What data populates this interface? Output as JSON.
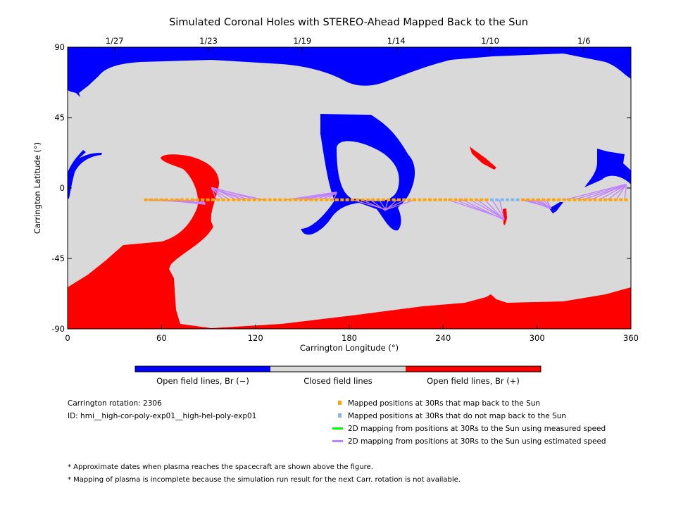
{
  "chart_data": {
    "type": "map",
    "title": "Simulated Coronal Holes with STEREO-Ahead Mapped Back to the Sun",
    "xlabel": "Carrington Longitude (°)",
    "ylabel": "Carrington Latitude (°)",
    "xlim": [
      0,
      360
    ],
    "ylim": [
      -90,
      90
    ],
    "x_ticks": [
      "0",
      "60",
      "120",
      "180",
      "240",
      "300",
      "360"
    ],
    "y_ticks": [
      "90",
      "45",
      "0",
      "-45",
      "-90"
    ],
    "top_date_ticks": [
      {
        "label": "1/27",
        "lon": 30
      },
      {
        "label": "1/23",
        "lon": 90
      },
      {
        "label": "1/19",
        "lon": 150
      },
      {
        "label": "1/14",
        "lon": 210
      },
      {
        "label": "1/10",
        "lon": 270
      },
      {
        "label": "1/6",
        "lon": 330
      }
    ],
    "colors": {
      "open_negative": "#0000ff",
      "closed": "#d9d9d9",
      "open_positive": "#ff0000",
      "mapped": "#ffa500",
      "not_mapped": "#80b8f0",
      "measured_speed": "#00ff00",
      "estimated_speed": "#c080ff"
    },
    "colorbar_labels": [
      "Open field lines, Br (−)",
      "Closed field lines",
      "Open field lines, Br (+)"
    ],
    "points_latitude": -7.5,
    "mapped_back_lons": [
      50,
      53.3,
      56.6,
      59.9,
      63.2,
      66.5,
      69.8,
      73.1,
      76.4,
      79.7,
      83,
      86.3,
      89.6,
      92.9,
      96.2,
      99.5,
      102.8,
      106.1,
      109.4,
      112.7,
      116,
      119.3,
      122.6,
      125.9,
      129.2,
      132.5,
      135.8,
      139.1,
      142.4,
      145.7,
      149,
      152.3,
      155.6,
      158.9,
      162.2,
      165.5,
      168.8,
      172.1,
      175.4,
      178.7,
      182,
      185.3,
      188.6,
      191.9,
      195.2,
      198.5,
      201.8,
      205.1,
      208.4,
      211.7,
      215,
      218.3,
      221.6,
      224.9,
      228.2,
      231.5,
      234.8,
      238.1,
      241.4,
      244.7,
      248,
      251.3,
      254.6,
      257.9,
      261.2,
      264.5,
      267.8,
      290.9,
      294.2,
      297.5,
      300.8,
      304.1,
      307.4,
      310.7,
      314,
      317.3,
      320.6,
      323.9,
      327.2,
      330.5,
      333.8,
      337.1,
      340.4,
      343.7,
      347,
      350.3,
      353.6,
      356.9
    ],
    "not_mapped_lons": [
      271.1,
      274.4,
      277.7,
      281,
      284.3,
      287.6
    ],
    "estimated_speed_fans": [
      {
        "foot": [
          88,
          -10
        ],
        "from": [
          50,
          86
        ]
      },
      {
        "foot": [
          92,
          0
        ],
        "from": [
          95,
          125
        ]
      },
      {
        "foot": [
          172,
          -3
        ],
        "from": [
          140,
          170
        ]
      },
      {
        "foot": [
          203,
          -14
        ],
        "from": [
          182,
          222
        ]
      },
      {
        "foot": [
          279,
          -20
        ],
        "from": [
          243,
          276
        ]
      },
      {
        "foot": [
          309,
          -13
        ],
        "from": [
          290,
          306
        ]
      },
      {
        "foot": [
          357,
          2
        ],
        "from": [
          318,
          356
        ]
      }
    ]
  },
  "info": {
    "rotation": "Carrington rotation: 2306",
    "id": "ID: hmi__high-cor-poly-exp01__high-hel-poly-exp01"
  },
  "legend": [
    "Mapped positions at 30Rs that map back to the Sun",
    "Mapped positions at 30Rs that do not map back to the Sun",
    "2D mapping from positions at 30Rs to the Sun using measured speed",
    "2D mapping from positions at 30Rs to the Sun using estimated speed"
  ],
  "notes": [
    "* Approximate dates when plasma reaches the spacecraft are shown above the figure.",
    "* Mapping of plasma is incomplete because the simulation run result for the next Carr. rotation is not available."
  ]
}
